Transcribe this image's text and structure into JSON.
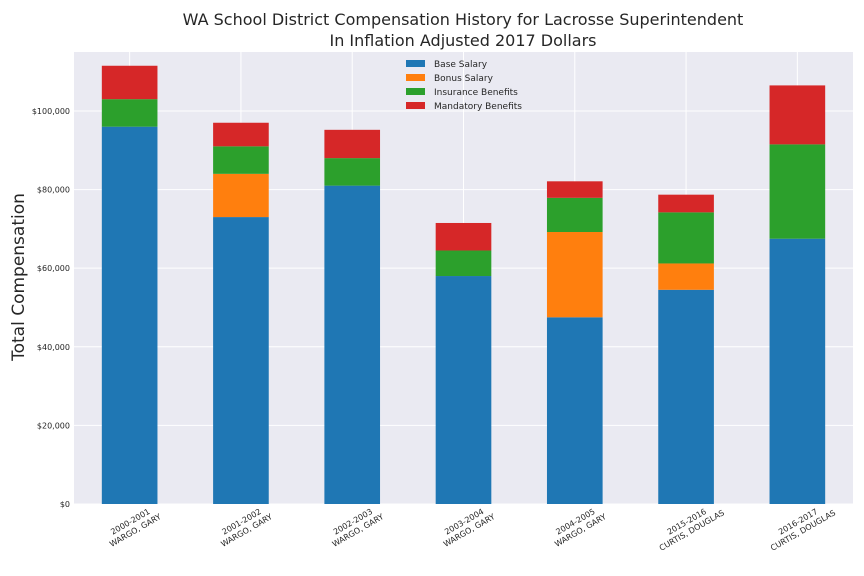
{
  "chart_data": {
    "type": "bar",
    "stacked": true,
    "title": "WA School District Compensation History for Lacrosse Superintendent",
    "subtitle": "In Inflation Adjusted 2017 Dollars",
    "ylabel": "Total Compensation",
    "xlabel": "",
    "ylim": [
      0,
      115000
    ],
    "yticks": [
      0,
      20000,
      40000,
      60000,
      80000,
      100000
    ],
    "ytick_labels": [
      "$0",
      "$20,000",
      "$40,000",
      "$60,000",
      "$80,000",
      "$100,000"
    ],
    "grid": true,
    "legend_position": "top-center",
    "categories": [
      [
        "2000-2001",
        "WARGO, GARY"
      ],
      [
        "2001-2002",
        "WARGO, GARY"
      ],
      [
        "2002-2003",
        "WARGO, GARY"
      ],
      [
        "2003-2004",
        "WARGO, GARY"
      ],
      [
        "2004-2005",
        "WARGO, GARY"
      ],
      [
        "2015-2016",
        "CURTIS, DOUGLAS"
      ],
      [
        "2016-2017",
        "CURTIS, DOUGLAS"
      ]
    ],
    "series": [
      {
        "name": "Base Salary",
        "color": "#1f77b4",
        "values": [
          96000,
          73000,
          81000,
          58000,
          47500,
          54500,
          67500
        ]
      },
      {
        "name": "Bonus Salary",
        "color": "#ff7f0e",
        "values": [
          0,
          11000,
          0,
          0,
          21700,
          6700,
          0
        ]
      },
      {
        "name": "Insurance Benefits",
        "color": "#2ca02c",
        "values": [
          7000,
          7000,
          7000,
          6500,
          8700,
          13000,
          24000
        ]
      },
      {
        "name": "Mandatory Benefits",
        "color": "#d62728",
        "values": [
          8500,
          6000,
          7200,
          7000,
          4200,
          4500,
          15000
        ]
      }
    ]
  }
}
